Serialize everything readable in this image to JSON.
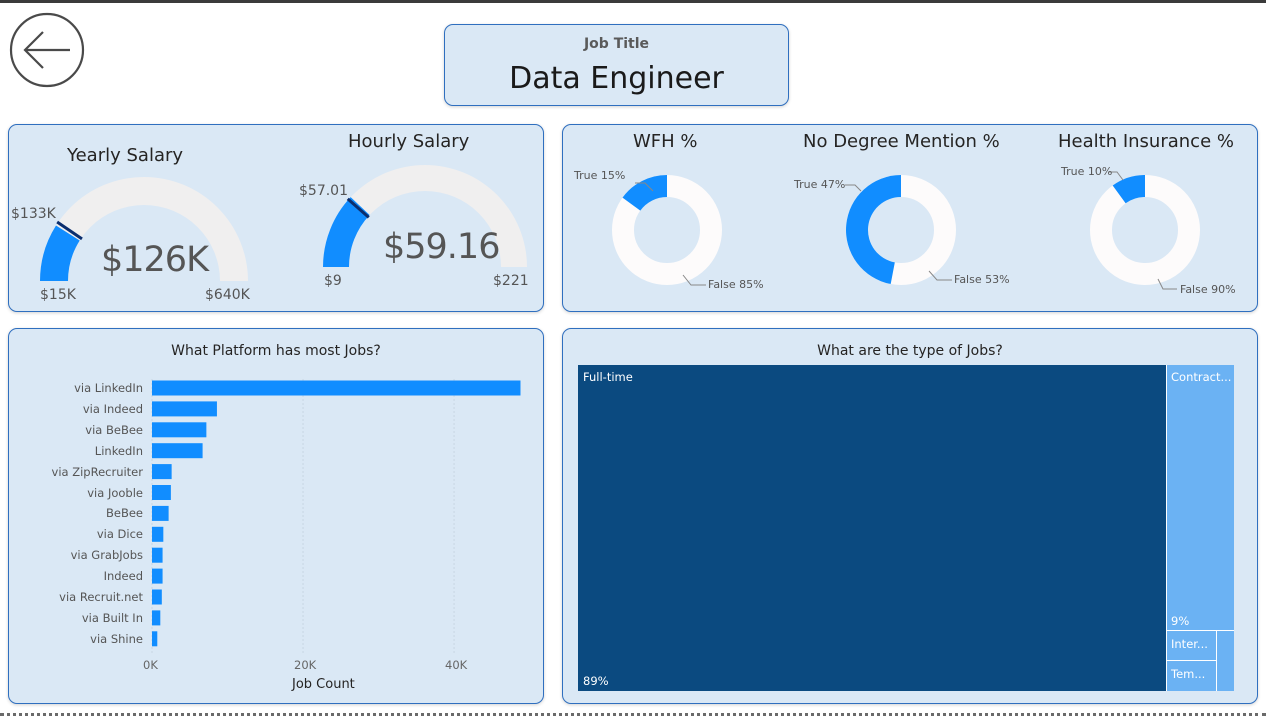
{
  "header": {
    "back_icon": "back-arrow-icon",
    "title_label": "Job Title",
    "title_value": "Data Engineer"
  },
  "colors": {
    "accent": "#118dff",
    "dark_accent": "#0b4a80",
    "light_accent": "#6bb2f3",
    "panel_bg": "#dae8f5",
    "gauge_track": "#f0efef",
    "donut_track": "#fdfbfb"
  },
  "salary": {
    "yearly": {
      "title": "Yearly Salary",
      "value": "$126K",
      "min": "$15K",
      "max": "$640K",
      "target": "$133K",
      "fill_fraction": 0.179,
      "target_fraction": 0.19
    },
    "hourly": {
      "title": "Hourly Salary",
      "value": "$59.16",
      "min": "$9",
      "max": "$221",
      "target": "$57.01",
      "fill_fraction": 0.24,
      "target_fraction": 0.23
    }
  },
  "donuts": [
    {
      "title": "WFH %",
      "true_label": "True 15%",
      "false_label": "False 85%",
      "true_fraction": 0.15
    },
    {
      "title": "No Degree Mention %",
      "true_label": "True 47%",
      "false_label": "False 53%",
      "true_fraction": 0.47
    },
    {
      "title": "Health Insurance %",
      "true_label": "True 10%",
      "false_label": "False 90%",
      "true_fraction": 0.1
    }
  ],
  "chart_data": [
    {
      "type": "bar",
      "title": "What Platform has most Jobs?",
      "xlabel": "Job Count",
      "ylabel": "",
      "orientation": "horizontal",
      "categories": [
        "via LinkedIn",
        "via Indeed",
        "via BeBee",
        "LinkedIn",
        "via ZipRecruiter",
        "via Jooble",
        "BeBee",
        "via Dice",
        "via GrabJobs",
        "Indeed",
        "via Recruit.net",
        "via Built In",
        "via Shine"
      ],
      "values": [
        48800,
        8600,
        7200,
        6700,
        2600,
        2500,
        2200,
        1500,
        1400,
        1400,
        1300,
        1100,
        700
      ],
      "xlim": [
        0,
        49000
      ],
      "xticks": [
        "0K",
        "20K",
        "40K"
      ]
    },
    {
      "type": "treemap",
      "title": "What are the type of Jobs?",
      "categories": [
        "Full-time",
        "Contract...",
        "Inter...",
        "Tem..."
      ],
      "values": [
        89,
        9,
        1,
        1
      ],
      "value_labels": [
        "89%",
        "9%",
        "",
        ""
      ]
    }
  ]
}
